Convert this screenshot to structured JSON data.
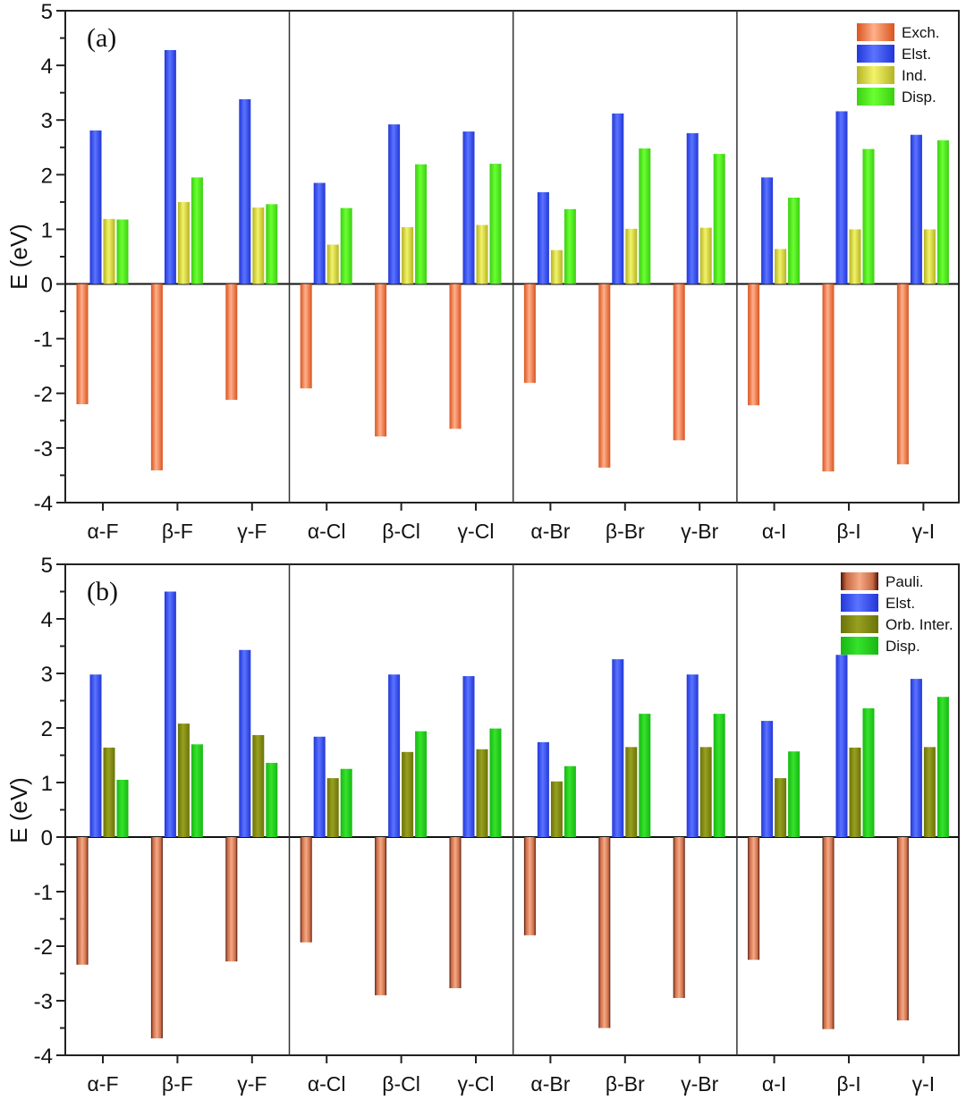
{
  "chart_data": [
    {
      "type": "bar",
      "panel_label": "(a)",
      "ylabel": "E (eV)",
      "xlabel": "",
      "ylim": [
        -4,
        5
      ],
      "yticks": [
        -4,
        -3,
        -2,
        -1,
        0,
        1,
        2,
        3,
        4,
        5
      ],
      "grid": false,
      "legend_position": "top-right",
      "categories": [
        "α-F",
        "β-F",
        "γ-F",
        "α-Cl",
        "β-Cl",
        "γ-Cl",
        "α-Br",
        "β-Br",
        "γ-Br",
        "α-I",
        "β-I",
        "γ-I"
      ],
      "group_separators_after": [
        3,
        6,
        9
      ],
      "series": [
        {
          "name": "Exch.",
          "color": "#f07a4c",
          "values": [
            -2.2,
            -3.41,
            -2.12,
            -1.91,
            -2.79,
            -2.65,
            -1.81,
            -3.36,
            -2.86,
            -2.22,
            -3.43,
            -3.3
          ]
        },
        {
          "name": "Elst.",
          "color": "#3e57f0",
          "values": [
            2.81,
            4.28,
            3.38,
            1.85,
            2.92,
            2.79,
            1.68,
            3.12,
            2.76,
            1.95,
            3.16,
            2.73
          ]
        },
        {
          "name": "Ind.",
          "color": "#d8d83a",
          "values": [
            1.19,
            1.5,
            1.4,
            0.72,
            1.04,
            1.08,
            0.62,
            1.01,
            1.03,
            0.64,
            1.0,
            1.0
          ]
        },
        {
          "name": "Disp.",
          "color": "#4fef1c",
          "values": [
            1.18,
            1.95,
            1.46,
            1.39,
            2.19,
            2.2,
            1.37,
            2.48,
            2.38,
            1.58,
            2.47,
            2.63
          ]
        }
      ]
    },
    {
      "type": "bar",
      "panel_label": "(b)",
      "ylabel": "E (eV)",
      "xlabel": "",
      "ylim": [
        -4,
        5
      ],
      "yticks": [
        -4,
        -3,
        -2,
        -1,
        0,
        1,
        2,
        3,
        4,
        5
      ],
      "grid": false,
      "legend_position": "top-right",
      "categories": [
        "α-F",
        "β-F",
        "γ-F",
        "α-Cl",
        "β-Cl",
        "γ-Cl",
        "α-Br",
        "β-Br",
        "γ-Br",
        "α-I",
        "β-I",
        "γ-I"
      ],
      "group_separators_after": [
        3,
        6,
        9
      ],
      "series": [
        {
          "name": "Pauli.",
          "color": "#e8875e",
          "edge": "#5a1e0c",
          "values": [
            -2.34,
            -3.69,
            -2.28,
            -1.93,
            -2.9,
            -2.77,
            -1.8,
            -3.5,
            -2.95,
            -2.25,
            -3.52,
            -3.36
          ]
        },
        {
          "name": "Elst.",
          "color": "#3e57f0",
          "values": [
            2.98,
            4.5,
            3.43,
            1.84,
            2.98,
            2.95,
            1.74,
            3.26,
            2.98,
            2.13,
            3.34,
            2.9
          ]
        },
        {
          "name": "Orb. Inter.",
          "color": "#7f8a0e",
          "values": [
            1.64,
            2.08,
            1.87,
            1.08,
            1.56,
            1.61,
            1.02,
            1.65,
            1.65,
            1.08,
            1.64,
            1.65
          ]
        },
        {
          "name": "Disp.",
          "color": "#22d41c",
          "values": [
            1.05,
            1.7,
            1.36,
            1.25,
            1.94,
            1.99,
            1.3,
            2.26,
            2.26,
            1.57,
            2.36,
            2.57
          ]
        }
      ]
    }
  ]
}
